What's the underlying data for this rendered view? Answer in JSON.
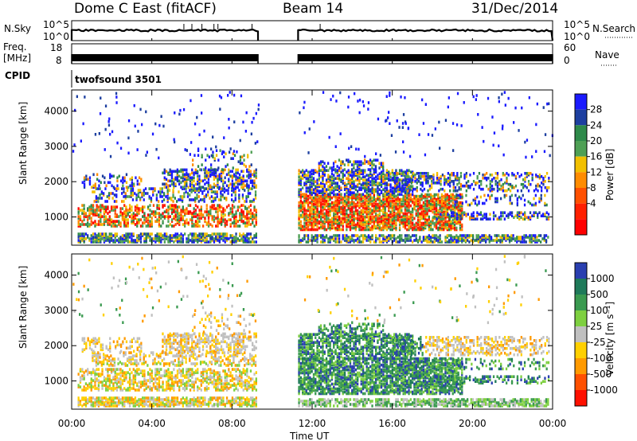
{
  "header": {
    "station": "Dome C East (fitACF)",
    "beam": "Beam 14",
    "date": "31/Dec/2014"
  },
  "status_panels": {
    "nsky_label": "N.Sky",
    "nsky_ticks": [
      "10^5",
      "10^0"
    ],
    "nsearch_label": "N.Search",
    "nsearch_ticks": [
      "10^5",
      "10^0"
    ],
    "freq_label": "Freq.",
    "freq_unit": "[MHz]",
    "freq_ticks": [
      "18",
      "8"
    ],
    "nave_label": "Nave",
    "nave_ticks": [
      "60",
      "0"
    ],
    "cpid_label": "CPID",
    "cpid_value": "twofsound 3501"
  },
  "chart_data": [
    {
      "type": "heatmap",
      "name": "power",
      "ylabel": "Slant Range [km]",
      "yticks": [
        "4000",
        "3000",
        "2000",
        "1000"
      ],
      "xticks": [
        "00:00",
        "04:00",
        "08:00",
        "12:00",
        "16:00",
        "20:00",
        "00:00"
      ],
      "colorbar_label": "Power [dB]",
      "colorbar_ticks": [
        "28",
        "24",
        "20",
        "16",
        "12",
        "8",
        "4"
      ],
      "colors": [
        "#1a1aff",
        "#1d3fa0",
        "#2e8a4a",
        "#4fa055",
        "#f2c000",
        "#ff8c00",
        "#ff5000",
        "#ff2000",
        "#ff0000"
      ],
      "data_gap_ut": [
        9.3,
        11.3
      ]
    },
    {
      "type": "heatmap",
      "name": "velocity",
      "ylabel": "Slant Range [km]",
      "yticks": [
        "4000",
        "3000",
        "2000",
        "1000"
      ],
      "xticks": [
        "00:00",
        "04:00",
        "08:00",
        "12:00",
        "16:00",
        "20:00",
        "00:00"
      ],
      "xlabel": "Time UT",
      "colorbar_label": "Velocity [m s⁻¹]",
      "colorbar_ticks": [
        "1000",
        "500",
        "100",
        "25",
        "-25",
        "-100",
        "-500",
        "-1000"
      ],
      "colors": [
        "#2a3fb0",
        "#1f7a5a",
        "#3a9a50",
        "#7ed040",
        "#c0c0c0",
        "#ffd000",
        "#ff9a00",
        "#ff5000",
        "#ff1000"
      ],
      "data_gap_ut": [
        9.3,
        11.3
      ]
    }
  ]
}
